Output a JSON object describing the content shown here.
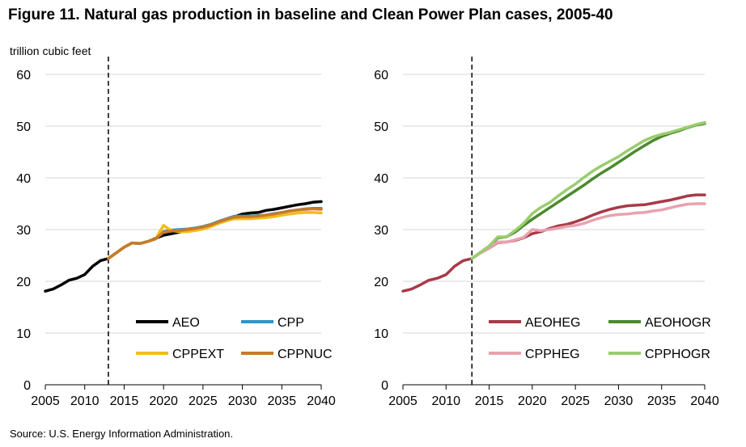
{
  "figure": {
    "title": "Figure 11. Natural gas production in baseline and Clean Power Plan cases, 2005-40",
    "source": "Source: U.S. Energy Information Administration."
  },
  "chart_data": [
    {
      "type": "line",
      "ylabel": "trillion cubic feet",
      "xlim": [
        2005,
        2040
      ],
      "ylim": [
        0,
        60
      ],
      "xticks": [
        2005,
        2010,
        2015,
        2020,
        2025,
        2030,
        2035,
        2040
      ],
      "yticks": [
        0,
        10,
        20,
        30,
        40,
        50,
        60
      ],
      "grid": true,
      "vline_x": 2013,
      "legend": "bottom-right",
      "series": [
        {
          "name": "AEO",
          "color": "#000000",
          "x": [
            2005,
            2006,
            2007,
            2008,
            2009,
            2010,
            2011,
            2012,
            2013,
            2014,
            2015,
            2016,
            2017,
            2018,
            2019,
            2020,
            2021,
            2022,
            2023,
            2024,
            2025,
            2026,
            2027,
            2028,
            2029,
            2030,
            2031,
            2032,
            2033,
            2034,
            2035,
            2036,
            2037,
            2038,
            2039,
            2040
          ],
          "y": [
            18.1,
            18.5,
            19.3,
            20.2,
            20.6,
            21.3,
            22.9,
            24.0,
            24.4,
            25.5,
            26.6,
            27.4,
            27.3,
            27.7,
            28.3,
            28.9,
            29.2,
            29.5,
            29.8,
            30.0,
            30.3,
            30.8,
            31.4,
            32.0,
            32.5,
            33.0,
            33.2,
            33.3,
            33.7,
            33.9,
            34.2,
            34.5,
            34.8,
            35.0,
            35.3,
            35.4
          ]
        },
        {
          "name": "CPP",
          "color": "#2E95C8",
          "x": [
            2013,
            2014,
            2015,
            2016,
            2017,
            2018,
            2019,
            2020,
            2021,
            2022,
            2023,
            2024,
            2025,
            2026,
            2027,
            2028,
            2029,
            2030,
            2031,
            2032,
            2033,
            2034,
            2035,
            2036,
            2037,
            2038,
            2039,
            2040
          ],
          "y": [
            24.4,
            25.5,
            26.6,
            27.4,
            27.3,
            27.7,
            28.2,
            29.6,
            29.9,
            30.0,
            30.1,
            30.3,
            30.6,
            31.0,
            31.6,
            32.1,
            32.6,
            32.6,
            32.6,
            32.7,
            32.8,
            33.1,
            33.3,
            33.6,
            33.8,
            34.0,
            34.1,
            34.1
          ]
        },
        {
          "name": "CPPEXT",
          "color": "#F2BC1A",
          "x": [
            2013,
            2014,
            2015,
            2016,
            2017,
            2018,
            2019,
            2020,
            2021,
            2022,
            2023,
            2024,
            2025,
            2026,
            2027,
            2028,
            2029,
            2030,
            2031,
            2032,
            2033,
            2034,
            2035,
            2036,
            2037,
            2038,
            2039,
            2040
          ],
          "y": [
            24.4,
            25.5,
            26.6,
            27.4,
            27.3,
            27.7,
            28.2,
            30.8,
            29.8,
            29.6,
            29.6,
            29.8,
            30.1,
            30.6,
            31.2,
            31.7,
            32.1,
            32.1,
            32.1,
            32.2,
            32.3,
            32.5,
            32.8,
            33.0,
            33.2,
            33.3,
            33.3,
            33.2
          ]
        },
        {
          "name": "CPPNUC",
          "color": "#C87A2A",
          "x": [
            2013,
            2014,
            2015,
            2016,
            2017,
            2018,
            2019,
            2020,
            2021,
            2022,
            2023,
            2024,
            2025,
            2026,
            2027,
            2028,
            2029,
            2030,
            2031,
            2032,
            2033,
            2034,
            2035,
            2036,
            2037,
            2038,
            2039,
            2040
          ],
          "y": [
            24.4,
            25.5,
            26.6,
            27.4,
            27.3,
            27.7,
            28.2,
            29.5,
            29.7,
            29.8,
            30.0,
            30.2,
            30.5,
            30.9,
            31.5,
            32.0,
            32.4,
            32.5,
            32.5,
            32.6,
            32.8,
            33.0,
            33.3,
            33.6,
            33.8,
            33.9,
            34.0,
            33.9
          ]
        }
      ]
    },
    {
      "type": "line",
      "xlim": [
        2005,
        2040
      ],
      "ylim": [
        0,
        60
      ],
      "xticks": [
        2005,
        2010,
        2015,
        2020,
        2025,
        2030,
        2035,
        2040
      ],
      "yticks": [
        0,
        10,
        20,
        30,
        40,
        50,
        60
      ],
      "grid": true,
      "vline_x": 2013,
      "legend": "bottom-right",
      "series": [
        {
          "name": "AEOHEG",
          "color": "#A83A48",
          "x": [
            2005,
            2006,
            2007,
            2008,
            2009,
            2010,
            2011,
            2012,
            2013,
            2014,
            2015,
            2016,
            2017,
            2018,
            2019,
            2020,
            2021,
            2022,
            2023,
            2024,
            2025,
            2026,
            2027,
            2028,
            2029,
            2030,
            2031,
            2032,
            2033,
            2034,
            2035,
            2036,
            2037,
            2038,
            2039,
            2040
          ],
          "y": [
            18.1,
            18.5,
            19.3,
            20.2,
            20.6,
            21.3,
            22.9,
            24.0,
            24.4,
            25.5,
            26.4,
            27.5,
            27.6,
            27.9,
            28.4,
            29.2,
            29.6,
            30.2,
            30.7,
            31.0,
            31.5,
            32.1,
            32.8,
            33.4,
            33.9,
            34.3,
            34.6,
            34.7,
            34.8,
            35.1,
            35.4,
            35.7,
            36.1,
            36.5,
            36.7,
            36.7
          ]
        },
        {
          "name": "AEOHOGR",
          "color": "#4A8A2E",
          "x": [
            2013,
            2014,
            2015,
            2016,
            2017,
            2018,
            2019,
            2020,
            2021,
            2022,
            2023,
            2024,
            2025,
            2026,
            2027,
            2028,
            2029,
            2030,
            2031,
            2032,
            2033,
            2034,
            2035,
            2036,
            2037,
            2038,
            2039,
            2040
          ],
          "y": [
            24.4,
            25.6,
            26.8,
            28.4,
            28.6,
            29.5,
            30.8,
            32.0,
            33.1,
            34.2,
            35.3,
            36.4,
            37.5,
            38.6,
            39.8,
            40.9,
            41.9,
            43.0,
            44.1,
            45.2,
            46.2,
            47.2,
            48.0,
            48.6,
            49.1,
            49.7,
            50.2,
            50.5
          ]
        },
        {
          "name": "CPPHEG",
          "color": "#E8A2AE",
          "x": [
            2013,
            2014,
            2015,
            2016,
            2017,
            2018,
            2019,
            2020,
            2021,
            2022,
            2023,
            2024,
            2025,
            2026,
            2027,
            2028,
            2029,
            2030,
            2031,
            2032,
            2033,
            2034,
            2035,
            2036,
            2037,
            2038,
            2039,
            2040
          ],
          "y": [
            24.4,
            25.5,
            26.4,
            27.6,
            27.6,
            28.0,
            28.5,
            30.0,
            29.8,
            30.0,
            30.3,
            30.6,
            30.8,
            31.2,
            31.8,
            32.3,
            32.7,
            32.9,
            33.0,
            33.2,
            33.3,
            33.6,
            33.8,
            34.2,
            34.6,
            34.9,
            35.0,
            35.0
          ]
        },
        {
          "name": "CPPHOGR",
          "color": "#9ACD6E",
          "x": [
            2013,
            2014,
            2015,
            2016,
            2017,
            2018,
            2019,
            2020,
            2021,
            2022,
            2023,
            2024,
            2025,
            2026,
            2027,
            2028,
            2029,
            2030,
            2031,
            2032,
            2033,
            2034,
            2035,
            2036,
            2037,
            2038,
            2039,
            2040
          ],
          "y": [
            24.4,
            25.6,
            26.8,
            28.6,
            28.6,
            29.8,
            31.2,
            33.1,
            34.3,
            35.2,
            36.5,
            37.7,
            38.8,
            40.1,
            41.3,
            42.3,
            43.2,
            44.1,
            45.2,
            46.2,
            47.2,
            47.9,
            48.4,
            48.8,
            49.3,
            49.8,
            50.3,
            50.7
          ]
        }
      ]
    }
  ]
}
